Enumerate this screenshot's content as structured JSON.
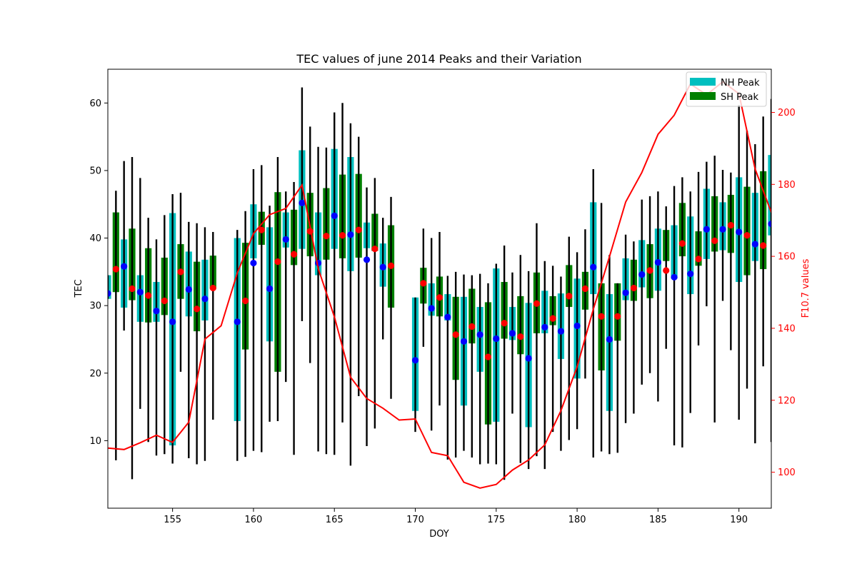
{
  "chart_data": {
    "type": "bar",
    "title": "TEC values of june 2014 Peaks and their Variation",
    "xlabel": "DOY",
    "ylabel": "TEC",
    "ylabel_right": "F10.7 values",
    "xlim": [
      151,
      192
    ],
    "ylim": [
      0,
      65
    ],
    "ylim_right": [
      90,
      212
    ],
    "xticks": [
      155,
      160,
      165,
      170,
      175,
      180,
      185,
      190
    ],
    "yticks": [
      10,
      20,
      30,
      40,
      50,
      60
    ],
    "yticks_right": [
      100,
      120,
      140,
      160,
      180,
      200
    ],
    "grid": false,
    "legend_position": "top-right",
    "colors": {
      "nh_bar": "#00bfbf",
      "sh_bar": "#008000",
      "nh_mean": "#0000ff",
      "sh_mean": "#ff0000",
      "errorbar": "#000000",
      "f107_line": "#ff0000",
      "right_axis": "#ff0000"
    },
    "series": [
      {
        "name": "NH Peak",
        "bars": [
          {
            "x": 151,
            "low": 31.0,
            "high": 34.5,
            "mean": 31.8,
            "err_low": 31.0,
            "err_high": 34.5
          },
          {
            "x": 152,
            "low": 29.7,
            "high": 39.8,
            "mean": 35.8,
            "err_low": 26.3,
            "err_high": 51.4
          },
          {
            "x": 153,
            "low": 27.6,
            "high": 34.5,
            "mean": 32.0,
            "err_low": 14.7,
            "err_high": 48.9
          },
          {
            "x": 154,
            "low": 27.6,
            "high": 33.5,
            "mean": 29.2,
            "err_low": 7.8,
            "err_high": 39.8
          },
          {
            "x": 155,
            "low": 9.3,
            "high": 43.7,
            "mean": 27.6,
            "err_low": 6.6,
            "err_high": 46.5
          },
          {
            "x": 156,
            "low": 28.4,
            "high": 38.0,
            "mean": 32.4,
            "err_low": 7.4,
            "err_high": 42.4
          },
          {
            "x": 157,
            "low": 27.8,
            "high": 36.8,
            "mean": 31.0,
            "err_low": 7.0,
            "err_high": 41.6
          },
          {
            "x": 159,
            "low": 12.9,
            "high": 40.0,
            "mean": 27.6,
            "err_low": 7.0,
            "err_high": 41.2
          },
          {
            "x": 160,
            "low": 37.0,
            "high": 45.0,
            "mean": 36.3,
            "err_low": 8.5,
            "err_high": 50.2
          },
          {
            "x": 161,
            "low": 24.7,
            "high": 41.6,
            "mean": 32.5,
            "err_low": 12.8,
            "err_high": 44.8
          },
          {
            "x": 162,
            "low": 38.6,
            "high": 43.8,
            "mean": 39.8,
            "err_low": 18.7,
            "err_high": 46.9
          },
          {
            "x": 163,
            "low": 38.4,
            "high": 53.0,
            "mean": 45.2,
            "err_low": 27.7,
            "err_high": 62.3
          },
          {
            "x": 164,
            "low": 34.5,
            "high": 43.8,
            "mean": 36.3,
            "err_low": 8.4,
            "err_high": 53.5
          },
          {
            "x": 165,
            "low": 38.4,
            "high": 53.2,
            "mean": 43.3,
            "err_low": 7.9,
            "err_high": 58.6
          },
          {
            "x": 166,
            "low": 35.1,
            "high": 52.0,
            "mean": 40.5,
            "err_low": 6.3,
            "err_high": 57.0
          },
          {
            "x": 167,
            "low": 38.5,
            "high": 42.3,
            "mean": 36.8,
            "err_low": 9.2,
            "err_high": 47.5
          },
          {
            "x": 168,
            "low": 32.8,
            "high": 39.2,
            "mean": 35.7,
            "err_low": 25.0,
            "err_high": 43.0
          },
          {
            "x": 170,
            "low": 14.4,
            "high": 31.2,
            "mean": 21.9,
            "err_low": 11.3,
            "err_high": 31.2
          },
          {
            "x": 171,
            "low": 28.5,
            "high": 33.3,
            "mean": 29.6,
            "err_low": 11.5,
            "err_high": 40.0
          },
          {
            "x": 172,
            "low": 27.8,
            "high": 31.7,
            "mean": 28.3,
            "err_low": 7.2,
            "err_high": 34.4
          },
          {
            "x": 173,
            "low": 15.2,
            "high": 31.3,
            "mean": 24.7,
            "err_low": 8.5,
            "err_high": 34.6
          },
          {
            "x": 174,
            "low": 20.2,
            "high": 29.8,
            "mean": 25.7,
            "err_low": 6.5,
            "err_high": 34.7
          },
          {
            "x": 175,
            "low": 12.8,
            "high": 35.5,
            "mean": 25.1,
            "err_low": 6.5,
            "err_high": 36.2
          },
          {
            "x": 176,
            "low": 24.9,
            "high": 29.8,
            "mean": 25.9,
            "err_low": 14.0,
            "err_high": 34.9
          },
          {
            "x": 177,
            "low": 12.0,
            "high": 30.4,
            "mean": 22.2,
            "err_low": 5.8,
            "err_high": 35.1
          },
          {
            "x": 178,
            "low": 25.9,
            "high": 32.2,
            "mean": 26.8,
            "err_low": 5.8,
            "err_high": 36.6
          },
          {
            "x": 179,
            "low": 22.1,
            "high": 31.8,
            "mean": 26.2,
            "err_low": 8.5,
            "err_high": 34.3
          },
          {
            "x": 180,
            "low": 19.2,
            "high": 34.0,
            "mean": 27.0,
            "err_low": 11.7,
            "err_high": 37.9
          },
          {
            "x": 181,
            "low": 31.7,
            "high": 45.3,
            "mean": 35.7,
            "err_low": 7.5,
            "err_high": 50.2
          },
          {
            "x": 182,
            "low": 14.4,
            "high": 31.7,
            "mean": 25.0,
            "err_low": 8.0,
            "err_high": 37.5
          },
          {
            "x": 183,
            "low": 30.8,
            "high": 37.0,
            "mean": 31.9,
            "err_low": 12.6,
            "err_high": 40.5
          },
          {
            "x": 184,
            "low": 32.7,
            "high": 39.7,
            "mean": 34.6,
            "err_low": 18.3,
            "err_high": 45.7
          },
          {
            "x": 185,
            "low": 32.2,
            "high": 41.4,
            "mean": 36.4,
            "err_low": 15.8,
            "err_high": 46.9
          },
          {
            "x": 186,
            "low": 34.0,
            "high": 41.9,
            "mean": 34.2,
            "err_low": 9.3,
            "err_high": 47.7
          },
          {
            "x": 187,
            "low": 31.7,
            "high": 43.2,
            "mean": 34.7,
            "err_low": 14.1,
            "err_high": 46.9
          },
          {
            "x": 188,
            "low": 36.9,
            "high": 47.3,
            "mean": 41.3,
            "err_low": 29.9,
            "err_high": 51.3
          },
          {
            "x": 189,
            "low": 38.2,
            "high": 45.3,
            "mean": 41.3,
            "err_low": 30.7,
            "err_high": 50.1
          },
          {
            "x": 190,
            "low": 33.5,
            "high": 49.0,
            "mean": 40.9,
            "err_low": 13.1,
            "err_high": 59.7
          },
          {
            "x": 191,
            "low": 36.6,
            "high": 46.7,
            "mean": 39.1,
            "err_low": 9.6,
            "err_high": 53.9
          },
          {
            "x": 192,
            "low": 40.4,
            "high": 52.3,
            "mean": 42.1,
            "err_low": 9.8,
            "err_high": 60.6
          }
        ]
      },
      {
        "name": "SH Peak",
        "bars": [
          {
            "x": 151.5,
            "low": 32.0,
            "high": 43.8,
            "mean": 35.4,
            "err_low": 7.1,
            "err_high": 47.0
          },
          {
            "x": 152.5,
            "low": 30.8,
            "high": 41.4,
            "mean": 32.5,
            "err_low": 4.3,
            "err_high": 52.0
          },
          {
            "x": 153.5,
            "low": 27.5,
            "high": 38.5,
            "mean": 31.5,
            "err_low": 9.8,
            "err_high": 43.0
          },
          {
            "x": 154.5,
            "low": 28.6,
            "high": 37.1,
            "mean": 30.7,
            "err_low": 8.0,
            "err_high": 43.4
          },
          {
            "x": 155.5,
            "low": 31.0,
            "high": 39.1,
            "mean": 35.0,
            "err_low": 20.2,
            "err_high": 46.7
          },
          {
            "x": 156.5,
            "low": 26.2,
            "high": 36.5,
            "mean": 29.5,
            "err_low": 6.5,
            "err_high": 42.2
          },
          {
            "x": 157.5,
            "low": 32.5,
            "high": 37.4,
            "mean": 32.6,
            "err_low": 13.1,
            "err_high": 40.9
          },
          {
            "x": 159.5,
            "low": 23.5,
            "high": 39.3,
            "mean": 30.7,
            "err_low": 7.6,
            "err_high": 44.0
          },
          {
            "x": 160.5,
            "low": 39.0,
            "high": 43.9,
            "mean": 41.2,
            "err_low": 8.3,
            "err_high": 50.8
          },
          {
            "x": 161.5,
            "low": 20.2,
            "high": 46.8,
            "mean": 36.5,
            "err_low": 12.9,
            "err_high": 52.0
          },
          {
            "x": 162.5,
            "low": 36.0,
            "high": 44.2,
            "mean": 37.6,
            "err_low": 7.9,
            "err_high": 48.3
          },
          {
            "x": 163.5,
            "low": 37.3,
            "high": 46.7,
            "mean": 41.0,
            "err_low": 21.5,
            "err_high": 56.5
          },
          {
            "x": 164.5,
            "low": 36.8,
            "high": 47.4,
            "mean": 40.3,
            "err_low": 8.0,
            "err_high": 53.4
          },
          {
            "x": 165.5,
            "low": 37.0,
            "high": 49.4,
            "mean": 40.4,
            "err_low": 12.7,
            "err_high": 60.0
          },
          {
            "x": 166.5,
            "low": 37.1,
            "high": 49.5,
            "mean": 41.2,
            "err_low": 16.6,
            "err_high": 55.0
          },
          {
            "x": 167.5,
            "low": 38.1,
            "high": 43.6,
            "mean": 38.4,
            "err_low": 11.8,
            "err_high": 48.9
          },
          {
            "x": 168.5,
            "low": 29.7,
            "high": 41.9,
            "mean": 35.9,
            "err_low": 16.2,
            "err_high": 46.1
          },
          {
            "x": 170.5,
            "low": 30.3,
            "high": 35.6,
            "mean": 33.3,
            "err_low": 23.9,
            "err_high": 41.4
          },
          {
            "x": 171.5,
            "low": 28.4,
            "high": 34.3,
            "mean": 31.2,
            "err_low": 15.2,
            "err_high": 40.9
          },
          {
            "x": 172.5,
            "low": 19.0,
            "high": 31.3,
            "mean": 25.7,
            "err_low": 7.5,
            "err_high": 35.0
          },
          {
            "x": 173.5,
            "low": 24.4,
            "high": 32.5,
            "mean": 26.9,
            "err_low": 7.5,
            "err_high": 34.5
          },
          {
            "x": 174.5,
            "low": 12.4,
            "high": 30.5,
            "mean": 22.4,
            "err_low": 6.6,
            "err_high": 33.3
          },
          {
            "x": 175.5,
            "low": 25.1,
            "high": 33.5,
            "mean": 27.4,
            "err_low": 4.2,
            "err_high": 38.9
          },
          {
            "x": 176.5,
            "low": 22.8,
            "high": 31.4,
            "mean": 25.4,
            "err_low": 6.7,
            "err_high": 37.5
          },
          {
            "x": 177.5,
            "low": 25.9,
            "high": 34.9,
            "mean": 30.3,
            "err_low": 7.7,
            "err_high": 42.2
          },
          {
            "x": 178.5,
            "low": 27.1,
            "high": 31.4,
            "mean": 28.1,
            "err_low": 11.3,
            "err_high": 35.9
          },
          {
            "x": 179.5,
            "low": 29.8,
            "high": 36.0,
            "mean": 31.4,
            "err_low": 10.1,
            "err_high": 40.2
          },
          {
            "x": 180.5,
            "low": 29.4,
            "high": 35.0,
            "mean": 32.5,
            "err_low": 19.2,
            "err_high": 41.3
          },
          {
            "x": 181.5,
            "low": 20.4,
            "high": 33.3,
            "mean": 28.4,
            "err_low": 8.4,
            "err_high": 45.2
          },
          {
            "x": 182.5,
            "low": 24.8,
            "high": 33.3,
            "mean": 28.4,
            "err_low": 8.2,
            "err_high": 33.3
          },
          {
            "x": 183.5,
            "low": 30.7,
            "high": 36.8,
            "mean": 32.6,
            "err_low": 14.0,
            "err_high": 39.5
          },
          {
            "x": 184.5,
            "low": 31.1,
            "high": 39.1,
            "mean": 35.2,
            "err_low": 20.0,
            "err_high": 46.2
          },
          {
            "x": 185.5,
            "low": 36.6,
            "high": 41.2,
            "mean": 35.2,
            "err_low": 23.6,
            "err_high": 44.7
          },
          {
            "x": 186.5,
            "low": 37.3,
            "high": 45.2,
            "mean": 39.2,
            "err_low": 9.0,
            "err_high": 49.0
          },
          {
            "x": 187.5,
            "low": 35.9,
            "high": 41.0,
            "mean": 36.9,
            "err_low": 24.1,
            "err_high": 49.8
          },
          {
            "x": 188.5,
            "low": 38.0,
            "high": 46.2,
            "mean": 39.6,
            "err_low": 12.7,
            "err_high": 52.2
          },
          {
            "x": 189.5,
            "low": 37.8,
            "high": 46.4,
            "mean": 41.9,
            "err_low": 23.4,
            "err_high": 49.7
          },
          {
            "x": 190.5,
            "low": 34.5,
            "high": 47.6,
            "mean": 40.4,
            "err_low": 17.7,
            "err_high": 55.9
          },
          {
            "x": 191.5,
            "low": 35.4,
            "high": 49.9,
            "mean": 38.9,
            "err_low": 21.0,
            "err_high": 58.0
          }
        ]
      },
      {
        "axis": "right",
        "type": "line",
        "x": [
          151,
          152,
          153,
          154,
          155,
          156,
          157,
          158,
          159,
          160,
          161,
          162,
          163,
          164,
          165,
          166,
          167,
          168,
          169,
          170,
          171,
          172,
          173,
          174,
          175,
          176,
          177,
          178,
          179,
          180,
          181,
          182,
          183,
          184,
          185,
          186,
          187,
          188,
          189,
          190,
          191,
          192
        ],
        "values": [
          106.7,
          106.3,
          108.2,
          110.3,
          108.3,
          113.9,
          137.0,
          140.7,
          155.4,
          166.3,
          171.6,
          173.3,
          179.8,
          156.6,
          143.2,
          126.4,
          120.5,
          117.8,
          114.5,
          114.8,
          105.5,
          104.6,
          97.2,
          95.6,
          96.6,
          100.6,
          103.4,
          107.6,
          117.1,
          129.3,
          145.3,
          159.9,
          175.1,
          183.3,
          193.9,
          199.2,
          207.9,
          204.9,
          208.5,
          205.2,
          184.3,
          172.2
        ]
      }
    ]
  }
}
